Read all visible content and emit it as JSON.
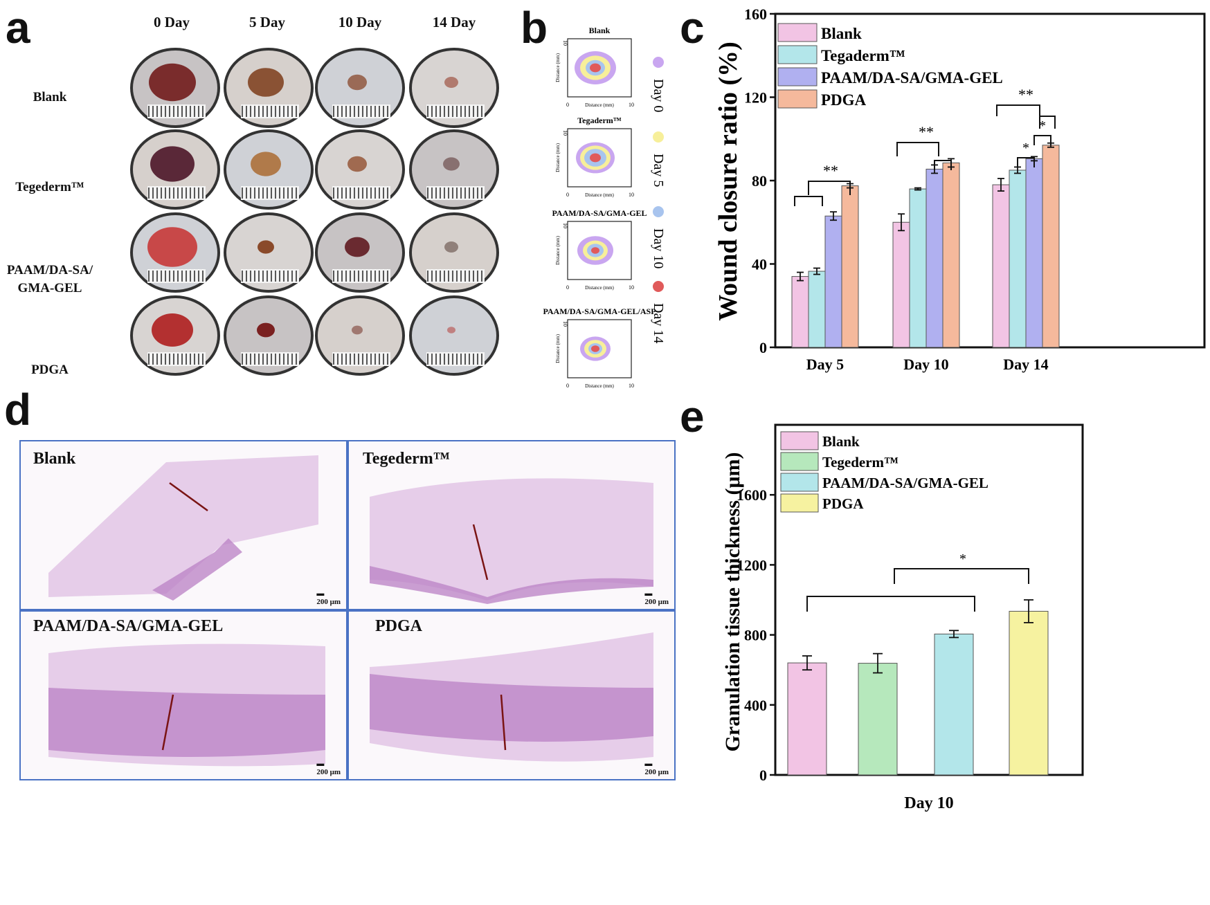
{
  "panels": {
    "a": "a",
    "b": "b",
    "c": "c",
    "d": "d",
    "e": "e"
  },
  "panel_a": {
    "days": [
      "0 Day",
      "5 Day",
      "10 Day",
      "14 Day"
    ],
    "groups": [
      "Blank",
      "Tegederm™",
      "PAAM/DA-SA/\nGMA-GEL",
      "PDGA"
    ]
  },
  "panel_b": {
    "titles": [
      "Blank",
      "Tegaderm™",
      "PAAM/DA-SA/GMA-GEL",
      "PAAM/DA-SA/GMA-GEL/ASP"
    ],
    "axis_label": "Distance (mm)",
    "tick_0": "0",
    "tick_10": "10",
    "legend": [
      "Day 0",
      "Day 5",
      "Day 10",
      "Day 14"
    ],
    "legend_colors": [
      "#c9a6f0",
      "#f7ef9a",
      "#a8c4ee",
      "#e05a5a"
    ]
  },
  "panel_d": {
    "labels": [
      "Blank",
      "Tegederm™",
      "PAAM/DA-SA/GMA-GEL",
      "PDGA"
    ],
    "scale_bar": "200 μm"
  },
  "chart_data": [
    {
      "id": "c",
      "type": "bar",
      "title": "",
      "xlabel": "",
      "ylabel": "Wound closure ratio (%)",
      "ylim": [
        0,
        160
      ],
      "yticks": [
        "0",
        "40",
        "80",
        "120",
        "160"
      ],
      "categories": [
        "Day 5",
        "Day 10",
        "Day 14"
      ],
      "series": [
        {
          "name": "Blank",
          "color": "#f2c4e4",
          "values": [
            34,
            60,
            78
          ],
          "errors": [
            2,
            4,
            3
          ]
        },
        {
          "name": "Tegaderm™",
          "color": "#b3e6ea",
          "values": [
            36.5,
            76,
            85
          ],
          "errors": [
            1.5,
            0.5,
            1.5
          ]
        },
        {
          "name": "PAAM/DA-SA/GMA-GEL",
          "color": "#b0b0f0",
          "values": [
            63,
            85.5,
            90.5
          ],
          "errors": [
            2,
            2,
            1
          ]
        },
        {
          "name": "PDGA",
          "color": "#f5b99c",
          "values": [
            77.5,
            88.5,
            97
          ],
          "errors": [
            1,
            2,
            1
          ]
        }
      ],
      "significance": [
        "**",
        "**",
        "**",
        "*",
        "*"
      ],
      "legend_position": "top-left"
    },
    {
      "id": "e",
      "type": "bar",
      "title": "",
      "xlabel": "Day 10",
      "ylabel": "Granulation tissue thickness (μm)",
      "ylim": [
        0,
        2000
      ],
      "yticks": [
        "0",
        "400",
        "800",
        "1200",
        "1600"
      ],
      "categories": [
        "Blank",
        "Tegederm™",
        "PAAM/DA-SA/GMA-GEL",
        "PDGA"
      ],
      "values": [
        640,
        638,
        805,
        935
      ],
      "errors": [
        40,
        55,
        20,
        65
      ],
      "colors": [
        "#f2c4e4",
        "#b6e8bc",
        "#b3e6ea",
        "#f6f2a0"
      ],
      "significance": [
        "*"
      ],
      "legend_position": "top-left"
    }
  ]
}
